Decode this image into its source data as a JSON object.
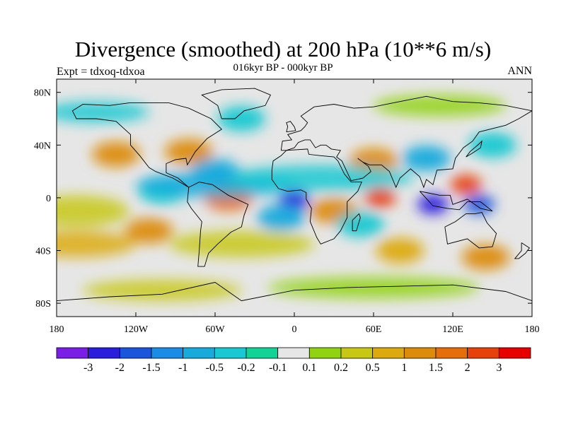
{
  "chart_data": {
    "type": "heatmap",
    "title": "Divergence (smoothed) at 200 hPa (10**6 m/s)",
    "subtitle": "016kyr BP - 000kyr BP",
    "left_label": "Expt = tdxoq-tdxoa",
    "right_label": "ANN",
    "x_ticks": [
      "180",
      "120W",
      "60W",
      "0",
      "60E",
      "120E",
      "180"
    ],
    "y_ticks": [
      "80N",
      "40N",
      "0",
      "40S",
      "80S"
    ],
    "xlim": [
      -180,
      180
    ],
    "ylim": [
      -90,
      90
    ],
    "grid": false,
    "legend_position": "bottom",
    "colorbar": {
      "levels": [
        "-3",
        "-2",
        "-1.5",
        "-1",
        "-0.5",
        "-0.2",
        "-0.1",
        "0.1",
        "0.2",
        "0.5",
        "1",
        "1.5",
        "2",
        "3"
      ],
      "colors": [
        "#7a1ee6",
        "#2a1edc",
        "#1a55dc",
        "#1a8ce6",
        "#19aadc",
        "#19c8d2",
        "#12d296",
        "#e6e6e6",
        "#91d211",
        "#c8c814",
        "#dcaa0f",
        "#dc8c0a",
        "#e66e0a",
        "#e6410a",
        "#e60000"
      ]
    },
    "features": [
      {
        "lon": 0,
        "lat": -2,
        "value": -3
      },
      {
        "lon": 105,
        "lat": -5,
        "value": -3
      },
      {
        "lon": 140,
        "lat": -5,
        "value": -2
      },
      {
        "lon": 65,
        "lat": 0,
        "value": 2
      },
      {
        "lon": 130,
        "lat": 10,
        "value": 2
      },
      {
        "lon": -50,
        "lat": 0,
        "value": 1.5
      },
      {
        "lon": -135,
        "lat": 33,
        "value": 1
      },
      {
        "lon": -80,
        "lat": 35,
        "value": 1
      },
      {
        "lon": 30,
        "lat": -10,
        "value": 1
      },
      {
        "lon": 60,
        "lat": 28,
        "value": 1
      },
      {
        "lon": -110,
        "lat": -25,
        "value": 1
      },
      {
        "lon": 80,
        "lat": -40,
        "value": 0.5
      },
      {
        "lon": 145,
        "lat": -45,
        "value": 1
      },
      {
        "lon": 100,
        "lat": 30,
        "value": -1
      },
      {
        "lon": -60,
        "lat": 20,
        "value": -1
      },
      {
        "lon": -40,
        "lat": 60,
        "value": -0.5
      },
      {
        "lon": -10,
        "lat": -15,
        "value": -1
      },
      {
        "lon": -100,
        "lat": 5,
        "value": -0.5
      },
      {
        "lon": 50,
        "lat": -20,
        "value": -0.5
      },
      {
        "lon": 150,
        "lat": 40,
        "value": -0.5
      }
    ]
  }
}
